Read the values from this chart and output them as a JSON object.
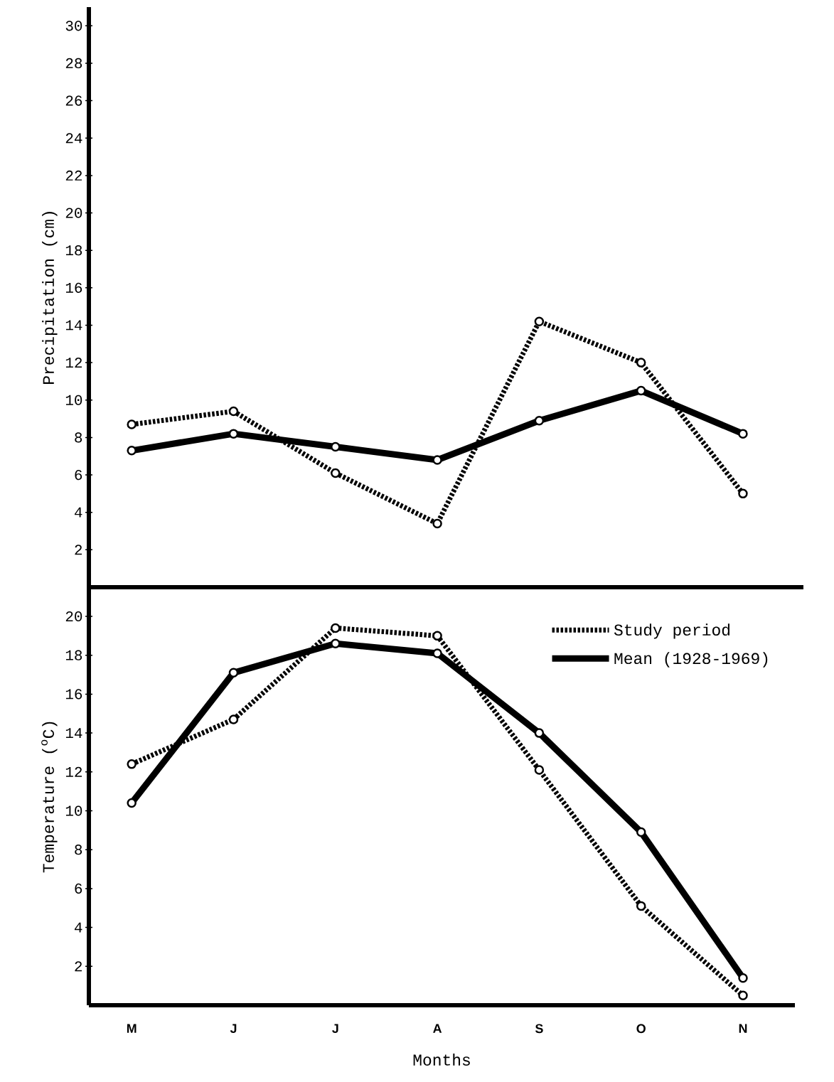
{
  "chart_data": [
    {
      "type": "line",
      "categories": [
        null,
        null,
        null,
        null,
        null,
        null,
        null
      ],
      "ylabel": "Precipitation (cm)",
      "ylim": [
        0,
        31
      ],
      "yticks": [
        2,
        4,
        6,
        8,
        10,
        12,
        14,
        16,
        18,
        20,
        22,
        24,
        26,
        28,
        30
      ],
      "tick_labels": "y",
      "marker": "circle",
      "series": [
        {
          "color": "#000000",
          "line_style": "dotted",
          "values": [
            8.7,
            9.4,
            6.1,
            3.4,
            14.2,
            12.0,
            5.0
          ]
        },
        {
          "color": "#000000",
          "line_style": "solid",
          "values": [
            7.3,
            8.2,
            7.5,
            6.8,
            8.9,
            10.5,
            8.2
          ]
        }
      ]
    },
    {
      "type": "line",
      "categories": [
        "M",
        "J",
        "J",
        "A",
        "S",
        "O",
        "N"
      ],
      "xlabel": "Months",
      "ylabel": "Temperature ($^{o}$C)",
      "ylim": [
        0,
        21.5
      ],
      "yticks": [
        2,
        4,
        6,
        8,
        10,
        12,
        14,
        16,
        18,
        20
      ],
      "marker": "circle",
      "legend": "top right",
      "series": [
        {
          "name": "Study period",
          "color": "#000000",
          "line_style": "dotted",
          "values": [
            12.4,
            14.7,
            19.4,
            19.0,
            12.1,
            5.1,
            0.5
          ]
        },
        {
          "name": "Mean (1928-1969)",
          "color": "#000000",
          "line_style": "solid",
          "values": [
            10.4,
            17.1,
            18.6,
            18.1,
            14.0,
            8.9,
            1.4
          ]
        }
      ]
    }
  ]
}
